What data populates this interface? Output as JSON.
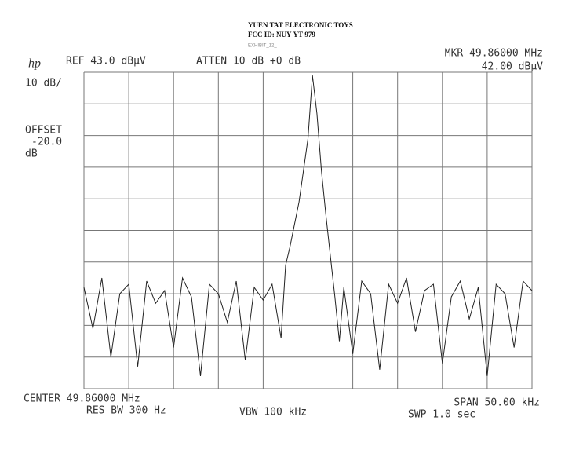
{
  "header": {
    "company": "YUEN TAT ELECTRONIC TOYS",
    "fcc": "FCC ID:  NUY-YT-979",
    "exhibit": "EXHIBIT_12_"
  },
  "chart_data": {
    "type": "line",
    "logo": "hp",
    "ref": "REF 43.0 dBµV",
    "atten": "ATTEN 10 dB +0 dB",
    "marker": "MKR 49.86000 MHz",
    "marker_level": "42.00 dBµV",
    "scale": "10 dB/",
    "offset": "OFFSET",
    "offset_value": "-20.0",
    "offset_unit": "dB",
    "center": "CENTER 49.86000 MHz",
    "rbw": "RES BW 300 Hz",
    "vbw": "VBW 100 kHz",
    "span": "SPAN 50.00 kHz",
    "sweep": "SWP 1.0  sec",
    "xlim": [
      49.835,
      49.885
    ],
    "ylim": [
      -57,
      43
    ],
    "grid": true,
    "color": "#222222",
    "x": [
      49.835,
      49.836,
      49.837,
      49.838,
      49.839,
      49.84,
      49.841,
      49.842,
      49.843,
      49.844,
      49.845,
      49.846,
      49.847,
      49.848,
      49.849,
      49.85,
      49.851,
      49.852,
      49.853,
      49.854,
      49.855,
      49.856,
      49.857,
      49.8575,
      49.858,
      49.8585,
      49.859,
      49.8595,
      49.86,
      49.8605,
      49.861,
      49.8615,
      49.862,
      49.8625,
      49.863,
      49.8635,
      49.864,
      49.865,
      49.866,
      49.867,
      49.868,
      49.869,
      49.87,
      49.871,
      49.872,
      49.873,
      49.874,
      49.875,
      49.876,
      49.877,
      49.878,
      49.879,
      49.88,
      49.881,
      49.882,
      49.883,
      49.884,
      49.885
    ],
    "values": [
      -25,
      -38,
      -22,
      -47,
      -27,
      -24,
      -50,
      -23,
      -30,
      -26,
      -44,
      -22,
      -28,
      -53,
      -24,
      -27,
      -36,
      -23,
      -48,
      -25,
      -29,
      -24,
      -41,
      -18,
      -12,
      -5,
      2,
      12,
      22,
      42,
      30,
      12,
      -2,
      -15,
      -28,
      -42,
      -25,
      -46,
      -23,
      -27,
      -51,
      -24,
      -30,
      -22,
      -39,
      -26,
      -24,
      -49,
      -28,
      -23,
      -35,
      -25,
      -53,
      -24,
      -27,
      -44,
      -23,
      -26
    ]
  }
}
